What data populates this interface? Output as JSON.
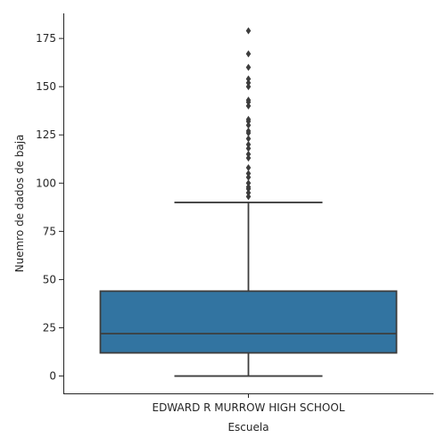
{
  "chart_data": {
    "type": "box",
    "title": "",
    "xlabel": "Escuela",
    "ylabel": "Nuemro de dados de baja",
    "categories": [
      "EDWARD R MURROW HIGH SCHOOL"
    ],
    "ylim": [
      -9,
      188
    ],
    "yticks": [
      0,
      25,
      50,
      75,
      100,
      125,
      150,
      175
    ],
    "grid": false,
    "legend": "none",
    "box_color": "#3274a1",
    "line_color": "#3d3d3d",
    "boxes": [
      {
        "category": "EDWARD R MURROW HIGH SCHOOL",
        "whisker_low": 0,
        "q1": 12,
        "median": 22,
        "q3": 44,
        "whisker_high": 90,
        "outliers": [
          93,
          95,
          97,
          98,
          100,
          103,
          105,
          108,
          113,
          115,
          118,
          120,
          123,
          126,
          127,
          130,
          132,
          133,
          140,
          142,
          143,
          150,
          152,
          154,
          160,
          167,
          179
        ]
      }
    ]
  }
}
